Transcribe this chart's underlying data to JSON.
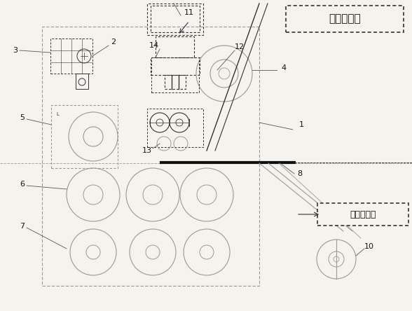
{
  "bg_color": "#f5f3ee",
  "fig_w": 5.88,
  "fig_h": 4.44,
  "lc": "#999999",
  "dc": "#333333",
  "title1_text": "膏药卷废料",
  "title2_text": "无纺布胶带"
}
